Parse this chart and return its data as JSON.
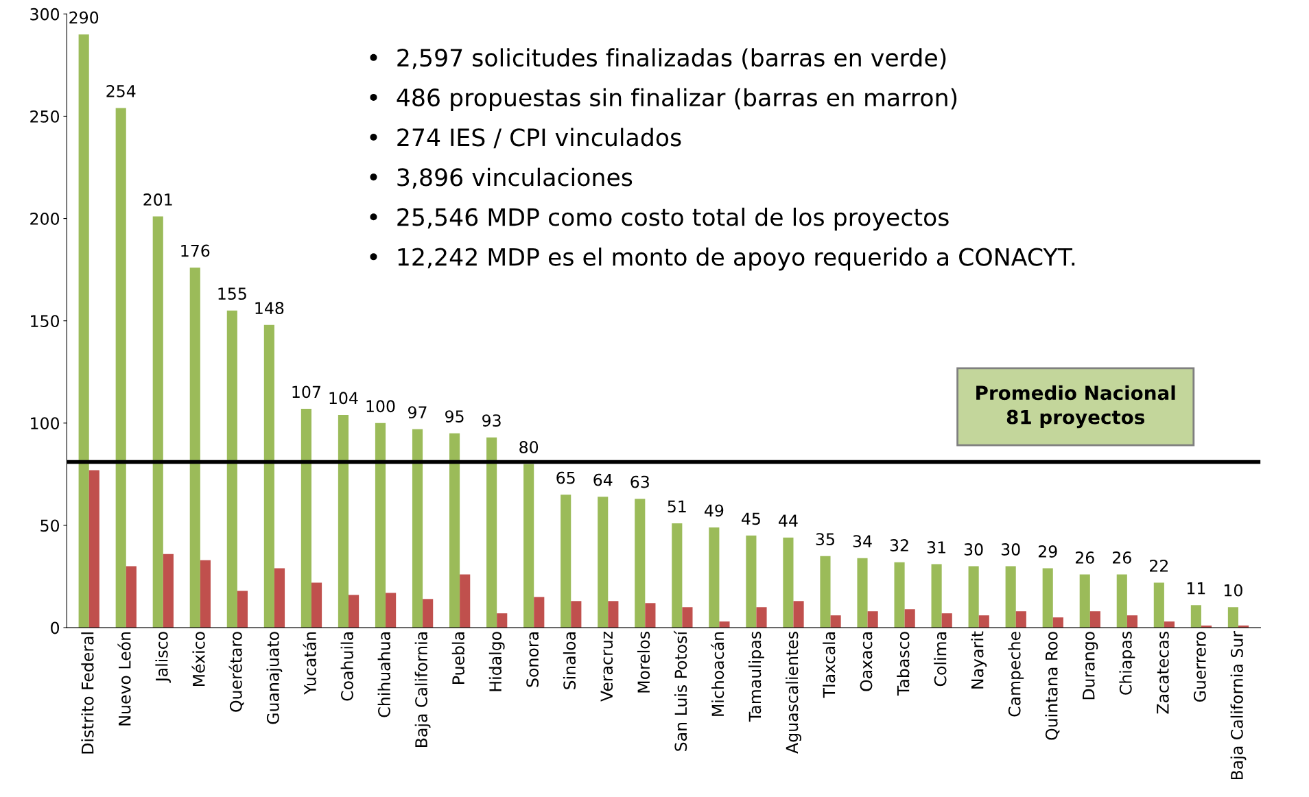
{
  "chart_data": {
    "type": "bar",
    "categories": [
      "Distrito Federal",
      "Nuevo León",
      "Jalisco",
      "México",
      "Querétaro",
      "Guanajuato",
      "Yucatán",
      "Coahuila",
      "Chihuahua",
      "Baja California",
      "Puebla",
      "Hidalgo",
      "Sonora",
      "Sinaloa",
      "Veracruz",
      "Morelos",
      "San Luis Potosí",
      "Michoacán",
      "Tamaulipas",
      "Aguascalientes",
      "Tlaxcala",
      "Oaxaca",
      "Tabasco",
      "Colima",
      "Nayarit",
      "Campeche",
      "Quintana Roo",
      "Durango",
      "Chiapas",
      "Zacatecas",
      "Guerrero",
      "Baja California Sur"
    ],
    "series": [
      {
        "color": "#9bbb59",
        "values": [
          290,
          254,
          201,
          176,
          155,
          148,
          107,
          104,
          100,
          97,
          95,
          93,
          80,
          65,
          64,
          63,
          51,
          49,
          45,
          44,
          35,
          34,
          32,
          31,
          30,
          30,
          29,
          26,
          26,
          22,
          11,
          10
        ],
        "value_labels": [
          "290",
          "254",
          "201",
          "176",
          "155",
          "148",
          "107",
          "104",
          "100",
          "97",
          "95",
          "93",
          "80",
          "65",
          "64",
          "63",
          "51",
          "49",
          "45",
          "44",
          "35",
          "34",
          "32",
          "31",
          "30",
          "30",
          "29",
          "26",
          "26",
          "22",
          "11",
          "10"
        ]
      },
      {
        "color": "#c0504d",
        "values": [
          77,
          30,
          36,
          33,
          18,
          29,
          22,
          16,
          17,
          14,
          26,
          7,
          15,
          13,
          13,
          12,
          10,
          3,
          10,
          13,
          6,
          8,
          9,
          7,
          6,
          8,
          5,
          8,
          6,
          3,
          1,
          1
        ]
      }
    ],
    "ylim": [
      0,
      300
    ],
    "yticks": [
      0,
      50,
      100,
      150,
      200,
      250,
      300
    ],
    "grid": false,
    "legend": false,
    "ref_lines": [
      {
        "axis": "y",
        "value": 81,
        "label": "Promedio Nacional\n81 proyectos",
        "color": "#000000",
        "line_style": "solid"
      }
    ],
    "annotations": [
      "•  2,597 solicitudes finalizadas (barras en verde)",
      "•  486 propuestas sin finalizar (barras en marron)",
      "•  274 IES / CPI vinculados",
      "•  3,896 vinculaciones",
      "•  25,546 MDP como costo total de los proyectos",
      "•  12,242 MDP es el monto de apoyo requerido a CONACYT."
    ]
  }
}
